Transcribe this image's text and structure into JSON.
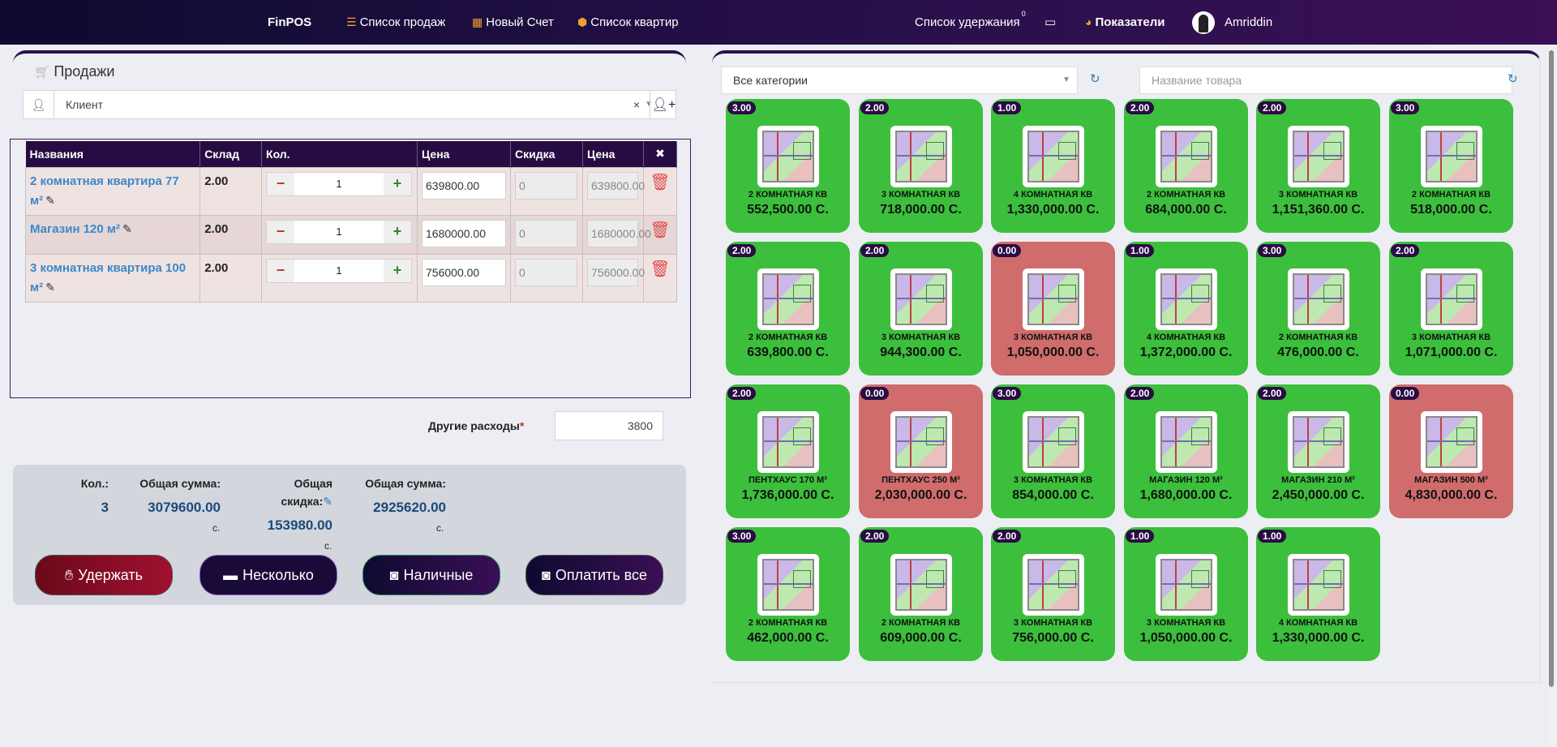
{
  "navbar": {
    "brand": "FinPOS",
    "sales_list": "Список продаж",
    "new_invoice": "Новый Счет",
    "apartments_list": "Список квартир",
    "hold_list": "Список удержания",
    "hold_count": "0",
    "indicators": "Показатели",
    "user": "Amriddin"
  },
  "sales": {
    "title": "Продажи",
    "client_placeholder": "Клиент",
    "client_clear": "×"
  },
  "table": {
    "headers": [
      "Названия",
      "Склад",
      "Кол.",
      "Цена",
      "Скидка",
      "Цена"
    ],
    "rows": [
      {
        "name": "2 комнатная квартира 77 м²",
        "stock": "2.00",
        "qty": "1",
        "price": "639800.00",
        "discount": "0",
        "total": "639800.00"
      },
      {
        "name": "Магазин 120 м²",
        "stock": "2.00",
        "qty": "1",
        "price": "1680000.00",
        "discount": "0",
        "total": "1680000.00"
      },
      {
        "name": "3 комнатная квартира 100 м²",
        "stock": "2.00",
        "qty": "1",
        "price": "756000.00",
        "discount": "0",
        "total": "756000.00"
      }
    ]
  },
  "other_expenses": {
    "label": "Другие расходы",
    "required_mark": "*",
    "value": "3800"
  },
  "totals": {
    "qty_label": "Кол.:",
    "qty_value": "3",
    "sum_label": "Общая сумма:",
    "sum_value": "3079600.00",
    "discount_label_1": "Общая",
    "discount_label_2": "скидка:",
    "discount_value": "153980.00",
    "grand_label": "Общая сумма:",
    "grand_value": "2925620.00",
    "currency": "с."
  },
  "actions": {
    "hold": "Удержать",
    "multiple": "Несколько",
    "cash": "Наличные",
    "pay_all": "Оплатить все"
  },
  "catalog": {
    "category_selected": "Все категории",
    "search_placeholder": "Название товара",
    "products": [
      {
        "qty": "3.00",
        "name": "2 КОМНАТНАЯ КВ",
        "price": "552,500.00 С.",
        "status": "green"
      },
      {
        "qty": "2.00",
        "name": "3 КОМНАТНАЯ КВ",
        "price": "718,000.00 С.",
        "status": "green"
      },
      {
        "qty": "1.00",
        "name": "4 КОМНАТНАЯ КВ",
        "price": "1,330,000.00 С.",
        "status": "green"
      },
      {
        "qty": "2.00",
        "name": "2 КОМНАТНАЯ КВ",
        "price": "684,000.00 С.",
        "status": "green"
      },
      {
        "qty": "2.00",
        "name": "3 КОМНАТНАЯ КВ",
        "price": "1,151,360.00 С.",
        "status": "green"
      },
      {
        "qty": "3.00",
        "name": "2 КОМНАТНАЯ КВ",
        "price": "518,000.00 С.",
        "status": "green"
      },
      {
        "qty": "2.00",
        "name": "2 КОМНАТНАЯ КВ",
        "price": "639,800.00 С.",
        "status": "green"
      },
      {
        "qty": "2.00",
        "name": "3 КОМНАТНАЯ КВ",
        "price": "944,300.00 С.",
        "status": "green"
      },
      {
        "qty": "0.00",
        "name": "3 КОМНАТНАЯ КВ",
        "price": "1,050,000.00 С.",
        "status": "red"
      },
      {
        "qty": "1.00",
        "name": "4 КОМНАТНАЯ КВ",
        "price": "1,372,000.00 С.",
        "status": "green"
      },
      {
        "qty": "3.00",
        "name": "2 КОМНАТНАЯ КВ",
        "price": "476,000.00 С.",
        "status": "green"
      },
      {
        "qty": "2.00",
        "name": "3 КОМНАТНАЯ КВ",
        "price": "1,071,000.00 С.",
        "status": "green"
      },
      {
        "qty": "2.00",
        "name": "ПЕНТХАУС 170 М²",
        "price": "1,736,000.00 С.",
        "status": "green"
      },
      {
        "qty": "0.00",
        "name": "ПЕНТХАУС 250 М²",
        "price": "2,030,000.00 С.",
        "status": "red"
      },
      {
        "qty": "3.00",
        "name": "3 КОМНАТНАЯ КВ",
        "price": "854,000.00 С.",
        "status": "green"
      },
      {
        "qty": "2.00",
        "name": "МАГАЗИН 120 М²",
        "price": "1,680,000.00 С.",
        "status": "green"
      },
      {
        "qty": "2.00",
        "name": "МАГАЗИН 210 М²",
        "price": "2,450,000.00 С.",
        "status": "green"
      },
      {
        "qty": "0.00",
        "name": "МАГАЗИН 500 М²",
        "price": "4,830,000.00 С.",
        "status": "red"
      },
      {
        "qty": "3.00",
        "name": "2 КОМНАТНАЯ КВ",
        "price": "462,000.00 С.",
        "status": "green"
      },
      {
        "qty": "2.00",
        "name": "2 КОМНАТНАЯ КВ",
        "price": "609,000.00 С.",
        "status": "green"
      },
      {
        "qty": "2.00",
        "name": "3 КОМНАТНАЯ КВ",
        "price": "756,000.00 С.",
        "status": "green"
      },
      {
        "qty": "1.00",
        "name": "3 КОМНАТНАЯ КВ",
        "price": "1,050,000.00 С.",
        "status": "green"
      },
      {
        "qty": "1.00",
        "name": "4 КОМНАТНАЯ КВ",
        "price": "1,330,000.00 С.",
        "status": "green"
      }
    ]
  }
}
